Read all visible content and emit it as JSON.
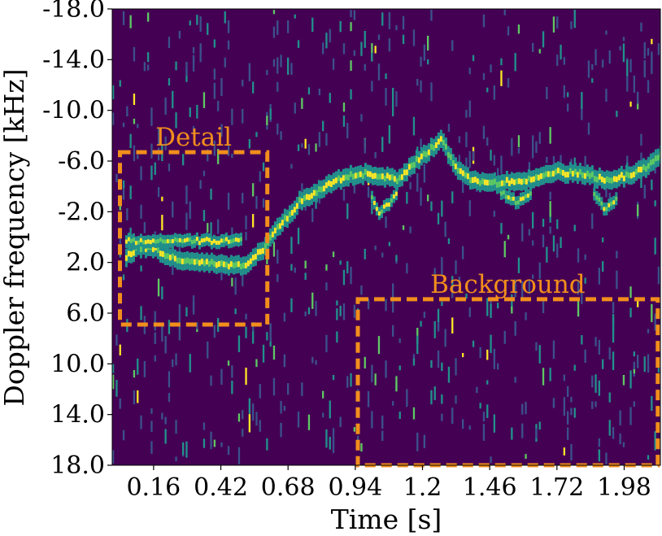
{
  "chart_data": {
    "type": "heatmap",
    "title": "",
    "xlabel": "Time [s]",
    "ylabel": "Doppler frequency [kHz]",
    "xlim": [
      0.0,
      2.12
    ],
    "ylim": [
      -18.0,
      18.0
    ],
    "x_ticks": [
      {
        "value": 0.16,
        "label": "0.16"
      },
      {
        "value": 0.42,
        "label": "0.42"
      },
      {
        "value": 0.68,
        "label": "0.68"
      },
      {
        "value": 0.94,
        "label": "0.94"
      },
      {
        "value": 1.2,
        "label": "1.2"
      },
      {
        "value": 1.46,
        "label": "1.46"
      },
      {
        "value": 1.72,
        "label": "1.72"
      },
      {
        "value": 1.98,
        "label": "1.98"
      }
    ],
    "y_ticks": [
      {
        "value": -18.0,
        "label": "-18.0"
      },
      {
        "value": -14.0,
        "label": "-14.0"
      },
      {
        "value": -10.0,
        "label": "-10.0"
      },
      {
        "value": -6.0,
        "label": "-6.0"
      },
      {
        "value": -2.0,
        "label": "-2.0"
      },
      {
        "value": 2.0,
        "label": "2.0"
      },
      {
        "value": 6.0,
        "label": "6.0"
      },
      {
        "value": 10.0,
        "label": "10.0"
      },
      {
        "value": 14.0,
        "label": "14.0"
      },
      {
        "value": 18.0,
        "label": "18.0"
      }
    ],
    "colormap": "viridis",
    "colors": {
      "background": "#440154",
      "low": "#3b528b",
      "mid": "#21918c",
      "high_mid": "#5ec962",
      "high": "#fde725",
      "annotation": "#f28e1c"
    },
    "main_trace": [
      [
        0.05,
        1.5
      ],
      [
        0.1,
        0.8
      ],
      [
        0.16,
        0.9
      ],
      [
        0.22,
        1.6
      ],
      [
        0.3,
        2.0
      ],
      [
        0.4,
        2.1
      ],
      [
        0.5,
        2.3
      ],
      [
        0.58,
        0.9
      ],
      [
        0.62,
        -0.5
      ],
      [
        0.67,
        -1.5
      ],
      [
        0.72,
        -2.8
      ],
      [
        0.8,
        -3.8
      ],
      [
        0.9,
        -4.8
      ],
      [
        0.98,
        -5.0
      ],
      [
        1.04,
        -4.8
      ],
      [
        1.1,
        -4.5
      ],
      [
        1.16,
        -5.8
      ],
      [
        1.22,
        -6.8
      ],
      [
        1.27,
        -7.8
      ],
      [
        1.32,
        -5.5
      ],
      [
        1.38,
        -4.6
      ],
      [
        1.46,
        -4.2
      ],
      [
        1.54,
        -4.4
      ],
      [
        1.62,
        -4.6
      ],
      [
        1.72,
        -5.1
      ],
      [
        1.82,
        -5.0
      ],
      [
        1.9,
        -4.5
      ],
      [
        1.98,
        -4.8
      ],
      [
        2.06,
        -5.5
      ],
      [
        2.12,
        -6.5
      ]
    ],
    "secondary_traces": [
      [
        [
          0.05,
          0.3
        ],
        [
          0.2,
          0.3
        ],
        [
          0.35,
          0.3
        ],
        [
          0.5,
          0.3
        ]
      ],
      [
        [
          1.0,
          -3.0
        ],
        [
          1.03,
          -1.8
        ],
        [
          1.06,
          -2.6
        ],
        [
          1.1,
          -3.4
        ]
      ],
      [
        [
          1.5,
          -3.5
        ],
        [
          1.56,
          -2.8
        ],
        [
          1.62,
          -3.4
        ]
      ],
      [
        [
          1.86,
          -3.4
        ],
        [
          1.9,
          -2.2
        ],
        [
          1.95,
          -3.0
        ]
      ]
    ],
    "annotations": [
      {
        "label": "Detail",
        "x_range": [
          0.03,
          0.6
        ],
        "y_range": [
          -6.7,
          6.9
        ]
      },
      {
        "label": "Background",
        "x_range": [
          0.95,
          2.11
        ],
        "y_range": [
          4.9,
          18.0
        ]
      }
    ]
  }
}
